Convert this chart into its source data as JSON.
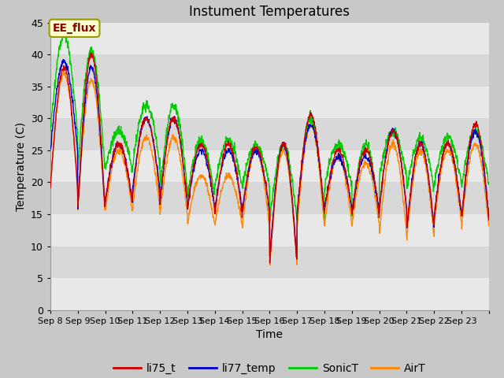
{
  "title": "Instument Temperatures",
  "xlabel": "Time",
  "ylabel": "Temperature (C)",
  "annotation": "EE_flux",
  "ylim": [
    0,
    45
  ],
  "yticks": [
    0,
    5,
    10,
    15,
    20,
    25,
    30,
    35,
    40,
    45
  ],
  "x_labels": [
    "Sep 8",
    "Sep 9",
    "Sep 10",
    "Sep 11",
    "Sep 12",
    "Sep 13",
    "Sep 14",
    "Sep 15",
    "Sep 16",
    "Sep 17",
    "Sep 18",
    "Sep 19",
    "Sep 20",
    "Sep 21",
    "Sep 22",
    "Sep 23"
  ],
  "series_colors": {
    "li75_t": "#cc0000",
    "li77_temp": "#0000cc",
    "SonicT": "#00cc00",
    "AirT": "#ff8800"
  },
  "band_colors": [
    "#e8e8e8",
    "#d8d8d8"
  ],
  "grid_color": "#ffffff",
  "fig_bg": "#c8c8c8",
  "title_fontsize": 12,
  "axis_fontsize": 10,
  "tick_fontsize": 9,
  "legend_fontsize": 10,
  "li75_peaks": [
    38,
    40,
    26,
    30,
    30,
    26,
    26,
    25.5,
    26,
    30.5,
    25,
    25,
    28,
    26,
    26,
    29
  ],
  "li75_valleys": [
    19,
    16,
    17,
    18,
    17,
    16,
    15,
    15.5,
    7.5,
    15,
    15.5,
    15,
    16,
    13,
    15,
    14.5
  ],
  "li77_peaks": [
    39,
    38,
    26,
    30,
    30,
    25,
    25,
    25,
    26,
    29,
    24,
    24,
    28,
    26,
    26,
    28
  ],
  "li77_valleys": [
    25,
    16,
    17,
    19,
    17,
    16,
    16,
    15.5,
    8,
    15.5,
    16,
    15.5,
    16,
    13,
    15,
    14.5
  ],
  "sonic_peaks": [
    43,
    40.5,
    28,
    32,
    32,
    26.5,
    26.5,
    26,
    26,
    30,
    26,
    26,
    28,
    27,
    27,
    28
  ],
  "sonic_valleys": [
    28,
    22,
    22,
    23,
    19,
    18,
    19.5,
    19.5,
    14,
    14,
    19.5,
    15,
    21,
    19,
    20,
    19.5
  ],
  "air_peaks": [
    37,
    36,
    25,
    27,
    27,
    21,
    21,
    25,
    25,
    29,
    24,
    23,
    26,
    25,
    25,
    26
  ],
  "air_valleys": [
    20,
    15.5,
    15.5,
    16,
    15,
    13.5,
    13.5,
    13,
    7,
    13,
    13.5,
    13.5,
    12,
    11.5,
    13.5,
    13
  ]
}
